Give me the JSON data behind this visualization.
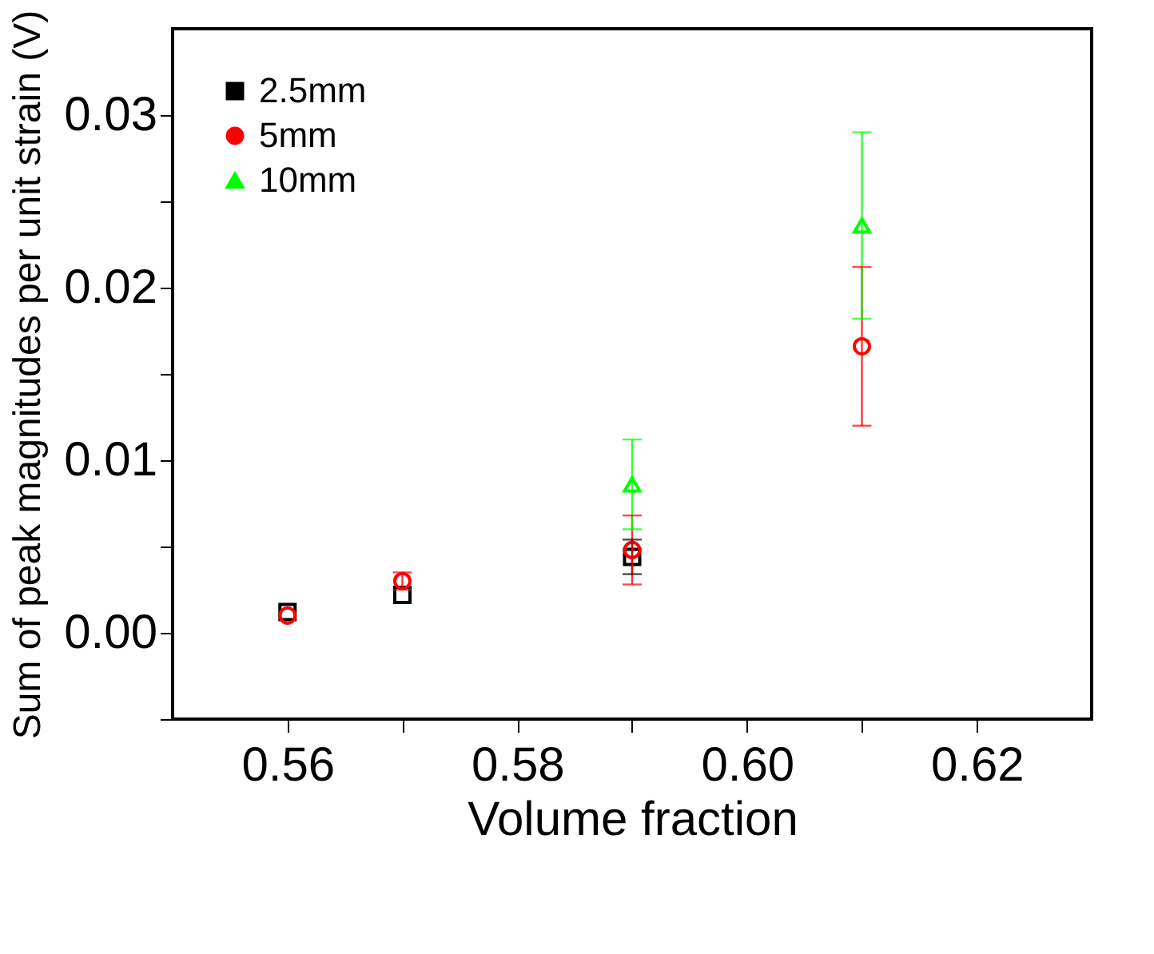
{
  "chart_data": {
    "type": "scatter",
    "xlabel": "Volume fraction",
    "ylabel": "Sum of peak magnitudes per unit strain (V)",
    "xlim": [
      0.55,
      0.63
    ],
    "xticks": [
      0.56,
      {
        "value": 0.57,
        "label": null
      },
      0.58,
      {
        "value": 0.59,
        "label": null
      },
      "0.60",
      {
        "value": 0.61,
        "label": null
      },
      0.62
    ],
    "ylim": [
      -0.005,
      0.035
    ],
    "yticks": [
      {
        "value": -0.005,
        "label": null
      },
      "0.00",
      {
        "value": 0.005,
        "label": null
      },
      0.01,
      {
        "value": 0.015,
        "label": null
      },
      0.02,
      {
        "value": 0.025,
        "label": null
      },
      0.03
    ],
    "legend": "top left",
    "grid": false,
    "series": [
      {
        "name": "2.5mm",
        "color": "#000000",
        "marker": "square",
        "x": [
          0.56,
          0.57,
          0.59
        ],
        "values": [
          0.0012,
          0.0022,
          0.0044
        ],
        "errors": [
          null,
          null,
          0.001
        ]
      },
      {
        "name": "5mm",
        "color": "#ff0000",
        "marker": "circle",
        "x": [
          0.56,
          0.57,
          0.59,
          0.61
        ],
        "values": [
          0.001,
          0.003,
          0.0048,
          0.0166
        ],
        "errors": [
          null,
          0.0005,
          0.002,
          0.0046
        ]
      },
      {
        "name": "10mm",
        "color": "#00ff00",
        "marker": "triangle",
        "x": [
          0.59,
          0.61
        ],
        "values": [
          0.0086,
          0.0236
        ],
        "errors": [
          0.0026,
          0.0054
        ]
      }
    ]
  }
}
